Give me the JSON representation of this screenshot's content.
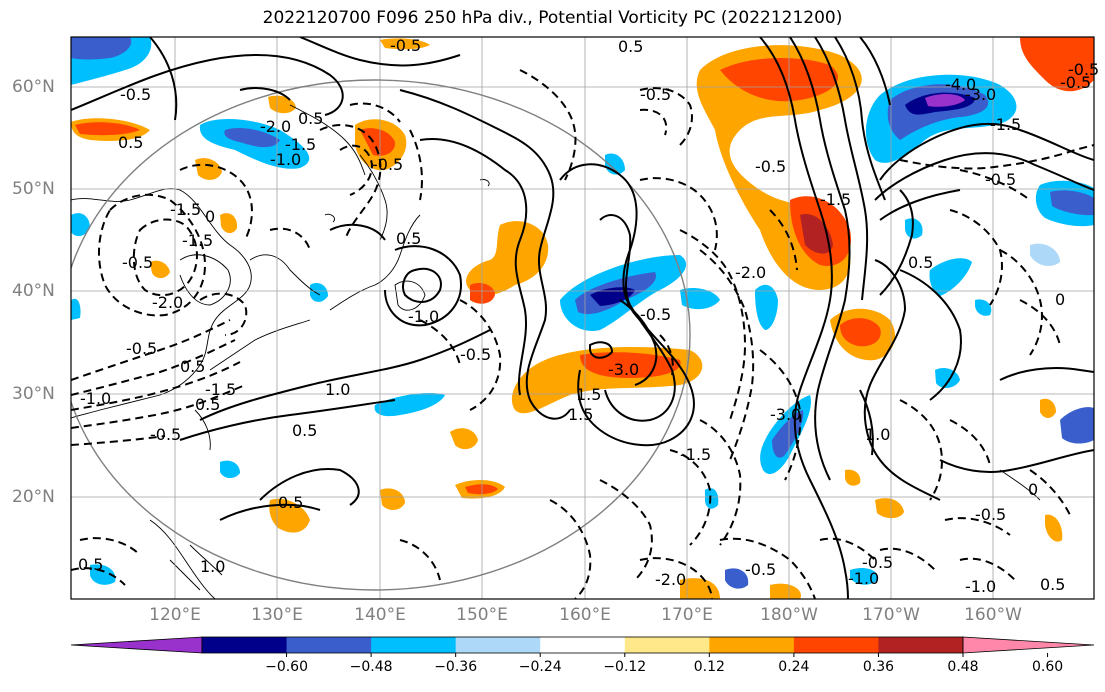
{
  "title": "2022120700 F096 250 hPa div., Potential Vorticity PC (2022121200)",
  "latitude_labels": [
    "60°N",
    "50°N",
    "40°N",
    "30°N",
    "20°N"
  ],
  "longitude_labels": [
    "120°E",
    "130°E",
    "140°E",
    "150°E",
    "160°E",
    "170°E",
    "180°W",
    "170°W",
    "160°W"
  ],
  "colorbar": {
    "colors": [
      "#9932cc",
      "#00008b",
      "#3a5fcd",
      "#00bfff",
      "#add8f7",
      "#ffffff",
      "#ffe88a",
      "#ffa500",
      "#ff4500",
      "#b22222",
      "#ff88aa"
    ],
    "tick_labels": [
      "−0.60",
      "−0.48",
      "−0.36",
      "−0.24",
      "−0.12",
      "0.12",
      "0.24",
      "0.36",
      "0.48",
      "0.60"
    ]
  },
  "contour_labels": [
    "0.5",
    "0.5",
    "-0.5",
    "-2.0",
    "-1.5",
    "0.5",
    "-0.5",
    "-0.5",
    "0.5",
    "-1.5",
    "-2.0",
    "0",
    "-0.5",
    "-0.5",
    "0.5",
    "-1.0",
    "0.5",
    "-1.5",
    "-0.5",
    "-1.0",
    "1.0",
    "0.5",
    "-0.5",
    "0.5",
    "-3.0",
    "-0.5",
    "1.5",
    "-1.5",
    "-3.0",
    "-2.0",
    "-0.5",
    "-0.5",
    "0.5",
    "1.0",
    "-0.5",
    "-1.0",
    "-2.0",
    "-1.5",
    "-1.0",
    "0.5",
    "-0.5",
    "-1.0",
    "0.5",
    "1.0",
    "-0.5",
    "-0.5",
    "-1.5",
    "-4.0",
    "-3.0",
    "-1.5",
    "-0.5",
    "0",
    "1.5",
    "0",
    "-0.5"
  ]
}
